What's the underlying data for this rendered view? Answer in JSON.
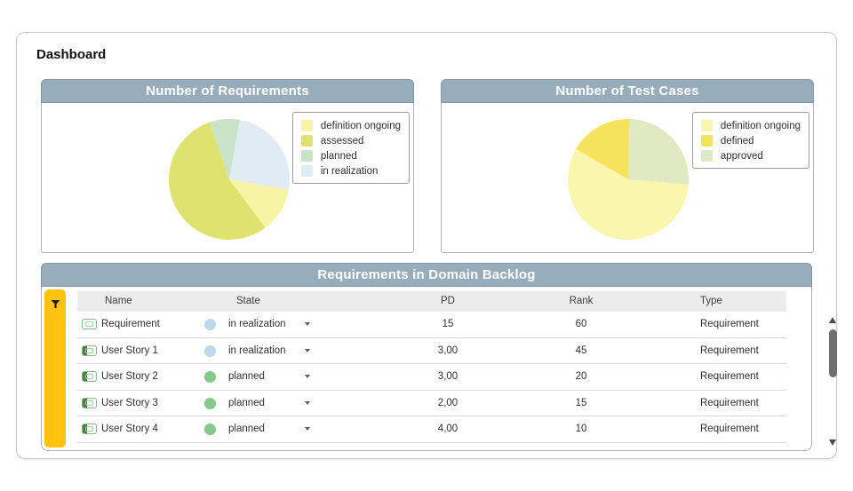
{
  "page": {
    "title": "Dashboard"
  },
  "colors": {
    "panel_header_bg": "#98adbc",
    "filter_bar": "#ffc20e",
    "state_in_realization": "#bdd8ec",
    "state_planned": "#85c98b"
  },
  "chart_data": [
    {
      "type": "pie",
      "title": "Number of Requirements",
      "legend_position": "right",
      "start_deg": 100,
      "labels": [
        "definition ongoing",
        "assessed",
        "planned",
        "in realization"
      ],
      "values": [
        12,
        55,
        8,
        25
      ],
      "colors": [
        "#f8f4a6",
        "#e0e26f",
        "#c8e3c8",
        "#e0ebf4"
      ]
    },
    {
      "type": "pie",
      "title": "Number of Test Cases",
      "legend_position": "right",
      "start_deg": 95,
      "labels": [
        "definition ongoing",
        "defined",
        "approved"
      ],
      "values": [
        57,
        17,
        26
      ],
      "colors": [
        "#faf6ae",
        "#f4e35b",
        "#dfeac3"
      ]
    }
  ],
  "table": {
    "title": "Requirements in Domain Backlog",
    "columns": [
      "Name",
      "State",
      "PD",
      "Rank",
      "Type"
    ],
    "rows": [
      {
        "name": "Requirement",
        "state": "in realization",
        "state_color": "#bdd8ec",
        "pd": "15",
        "rank": "60",
        "type": "Requirement"
      },
      {
        "name": "User Story 1",
        "state": "in realization",
        "state_color": "#bdd8ec",
        "pd": "3,00",
        "rank": "45",
        "type": "Requirement"
      },
      {
        "name": "User Story 2",
        "state": "planned",
        "state_color": "#85c98b",
        "pd": "3,00",
        "rank": "20",
        "type": "Requirement"
      },
      {
        "name": "User Story 3",
        "state": "planned",
        "state_color": "#85c98b",
        "pd": "2,00",
        "rank": "15",
        "type": "Requirement"
      },
      {
        "name": "User Story 4",
        "state": "planned",
        "state_color": "#85c98b",
        "pd": "4,00",
        "rank": "10",
        "type": "Requirement"
      }
    ]
  }
}
